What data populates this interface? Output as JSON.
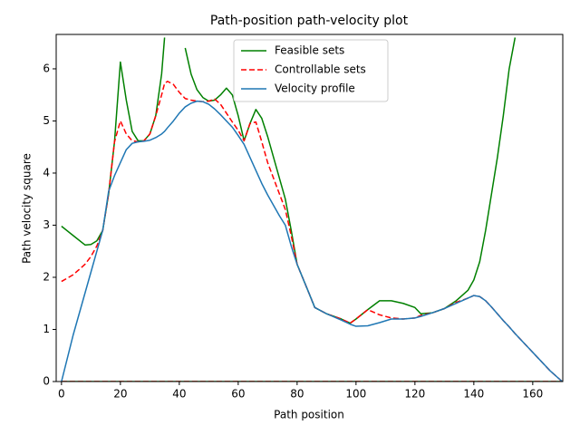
{
  "chart_data": {
    "type": "line",
    "title": "Path-position path-velocity plot",
    "x_label": "Path position",
    "y_label": "Path velocity square",
    "xlim": [
      -1.8,
      170.2
    ],
    "ylim": [
      0,
      6.66
    ],
    "xticks": [
      0,
      20,
      40,
      60,
      80,
      100,
      120,
      140,
      160
    ],
    "yticks": [
      0,
      1,
      2,
      3,
      4,
      5,
      6
    ],
    "legend": "upper center",
    "x": [
      0,
      4,
      8,
      10,
      12,
      14,
      16,
      18,
      20,
      22,
      24,
      26,
      28,
      30,
      32,
      34,
      35,
      36,
      38,
      40,
      42,
      44,
      46,
      48,
      50,
      52,
      54,
      56,
      58,
      60,
      62,
      64,
      66,
      68,
      70,
      72,
      74,
      76,
      78,
      80,
      84,
      86,
      90,
      95,
      98,
      100,
      104,
      108,
      112,
      116,
      120,
      122,
      126,
      130,
      134,
      138,
      140,
      142,
      144,
      146,
      148,
      150,
      152,
      154,
      158,
      162,
      166,
      170
    ],
    "series": [
      {
        "name": "Feasible sets",
        "color": "#008000",
        "dash": "solid",
        "lower_bound": 0,
        "values": [
          2.98,
          2.8,
          2.62,
          2.63,
          2.7,
          2.9,
          3.6,
          4.6,
          6.13,
          5.4,
          4.8,
          4.62,
          4.62,
          4.75,
          5.1,
          5.9,
          6.6,
          null,
          null,
          null,
          6.4,
          5.9,
          5.6,
          5.45,
          5.38,
          5.4,
          5.5,
          5.63,
          5.5,
          5.1,
          4.62,
          4.95,
          5.22,
          5.05,
          4.7,
          4.3,
          3.9,
          3.5,
          2.9,
          2.25,
          1.7,
          1.42,
          1.3,
          1.2,
          1.12,
          1.2,
          1.38,
          1.55,
          1.55,
          1.5,
          1.42,
          1.3,
          1.32,
          1.4,
          1.55,
          1.75,
          1.95,
          2.3,
          2.9,
          3.6,
          4.3,
          5.1,
          6.0,
          6.6,
          null,
          null,
          null,
          null
        ]
      },
      {
        "name": "Controllable sets",
        "color": "#ff0000",
        "dash": "dashed",
        "lower_bound": 0,
        "values": [
          1.92,
          2.05,
          2.25,
          2.4,
          2.6,
          2.9,
          3.6,
          4.6,
          5.0,
          4.75,
          4.62,
          4.6,
          4.62,
          4.75,
          5.1,
          5.5,
          5.72,
          5.76,
          5.7,
          5.55,
          5.43,
          5.4,
          5.38,
          5.37,
          5.38,
          5.42,
          5.32,
          5.15,
          4.98,
          4.82,
          4.62,
          4.95,
          4.98,
          4.6,
          4.2,
          3.9,
          3.6,
          3.3,
          2.8,
          2.25,
          1.7,
          1.42,
          1.3,
          1.2,
          1.12,
          1.2,
          1.38,
          1.28,
          1.22,
          1.2,
          1.22,
          1.27,
          1.32,
          1.4,
          1.52,
          1.6,
          1.65,
          1.63,
          1.55,
          1.43,
          1.3,
          1.17,
          1.05,
          0.92,
          0.68,
          0.44,
          0.2,
          0
        ]
      },
      {
        "name": "Velocity profile",
        "color": "#1f77b4",
        "dash": "solid",
        "values": [
          0,
          0.9,
          1.7,
          2.1,
          2.5,
          2.9,
          3.65,
          3.95,
          4.2,
          4.45,
          4.57,
          4.6,
          4.61,
          4.63,
          4.68,
          4.75,
          4.8,
          4.87,
          5.0,
          5.15,
          5.27,
          5.34,
          5.38,
          5.37,
          5.32,
          5.23,
          5.12,
          5.0,
          4.88,
          4.72,
          4.55,
          4.3,
          4.05,
          3.8,
          3.58,
          3.38,
          3.18,
          3.0,
          2.6,
          2.25,
          1.7,
          1.42,
          1.3,
          1.18,
          1.1,
          1.06,
          1.07,
          1.13,
          1.2,
          1.2,
          1.22,
          1.25,
          1.32,
          1.4,
          1.5,
          1.6,
          1.65,
          1.63,
          1.55,
          1.43,
          1.3,
          1.17,
          1.05,
          0.92,
          0.68,
          0.44,
          0.2,
          0
        ]
      }
    ]
  }
}
